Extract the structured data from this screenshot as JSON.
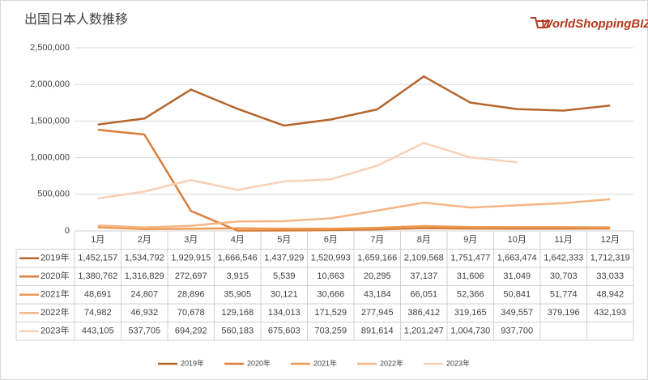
{
  "chart_data": {
    "type": "line",
    "title": "出国日本人数推移",
    "logo": "WorldShoppingBIZ",
    "categories": [
      "1月",
      "2月",
      "3月",
      "4月",
      "5月",
      "6月",
      "7月",
      "8月",
      "9月",
      "10月",
      "11月",
      "12月"
    ],
    "ylim": [
      0,
      2500000
    ],
    "yticks": [
      0,
      {
        "value": 500000,
        "label": "500,000"
      },
      {
        "value": 1000000,
        "label": "1,000,000"
      },
      {
        "value": 1500000,
        "label": "1,500,000"
      },
      {
        "value": 2000000,
        "label": "2,000,000"
      },
      {
        "value": 2500000,
        "label": "2,500,000"
      }
    ],
    "grid": true,
    "legend": "bottom",
    "series": [
      {
        "name": "2019年",
        "color": "#b5662e",
        "values": [
          1452157,
          1534792,
          1929915,
          1666546,
          1437929,
          1520993,
          1659166,
          2109568,
          1751477,
          1663474,
          1642333,
          1712319
        ],
        "value_labels": [
          "1,452,157",
          "1,534,792",
          "1,929,915",
          "1,666,546",
          "1,437,929",
          "1,520,993",
          "1,659,166",
          "2,109,568",
          "1,751,477",
          "1,663,474",
          "1,642,333",
          "1,712,319"
        ]
      },
      {
        "name": "2020年",
        "color": "#d97f3a",
        "values": [
          1380762,
          1316829,
          272697,
          3915,
          5539,
          10663,
          20295,
          37137,
          31606,
          31049,
          30703,
          33033
        ],
        "value_labels": [
          "1,380,762",
          "1,316,829",
          "272,697",
          "3,915",
          "5,539",
          "10,663",
          "20,295",
          "37,137",
          "31,606",
          "31,049",
          "30,703",
          "33,033"
        ]
      },
      {
        "name": "2021年",
        "color": "#ee9a52",
        "values": [
          48691,
          24807,
          28896,
          35905,
          30121,
          30666,
          43184,
          66051,
          52366,
          50841,
          51774,
          48942
        ],
        "value_labels": [
          "48,691",
          "24,807",
          "28,896",
          "35,905",
          "30,121",
          "30,666",
          "43,184",
          "66,051",
          "52,366",
          "50,841",
          "51,774",
          "48,942"
        ]
      },
      {
        "name": "2022年",
        "color": "#f4b585",
        "values": [
          74982,
          46932,
          70678,
          129168,
          134013,
          171529,
          277945,
          386412,
          319165,
          349557,
          379196,
          432193
        ],
        "value_labels": [
          "74,982",
          "46,932",
          "70,678",
          "129,168",
          "134,013",
          "171,529",
          "277,945",
          "386,412",
          "319,165",
          "349,557",
          "379,196",
          "432,193"
        ]
      },
      {
        "name": "2023年",
        "color": "#f8d1b6",
        "values": [
          443105,
          537705,
          694292,
          560183,
          675603,
          703259,
          891614,
          1201247,
          1004730,
          937700,
          null,
          null
        ],
        "value_labels": [
          "443,105",
          "537,705",
          "694,292",
          "560,183",
          "675,603",
          "703,259",
          "891,614",
          "1,201,247",
          "1,004,730",
          "937,700",
          null,
          null
        ]
      }
    ]
  }
}
